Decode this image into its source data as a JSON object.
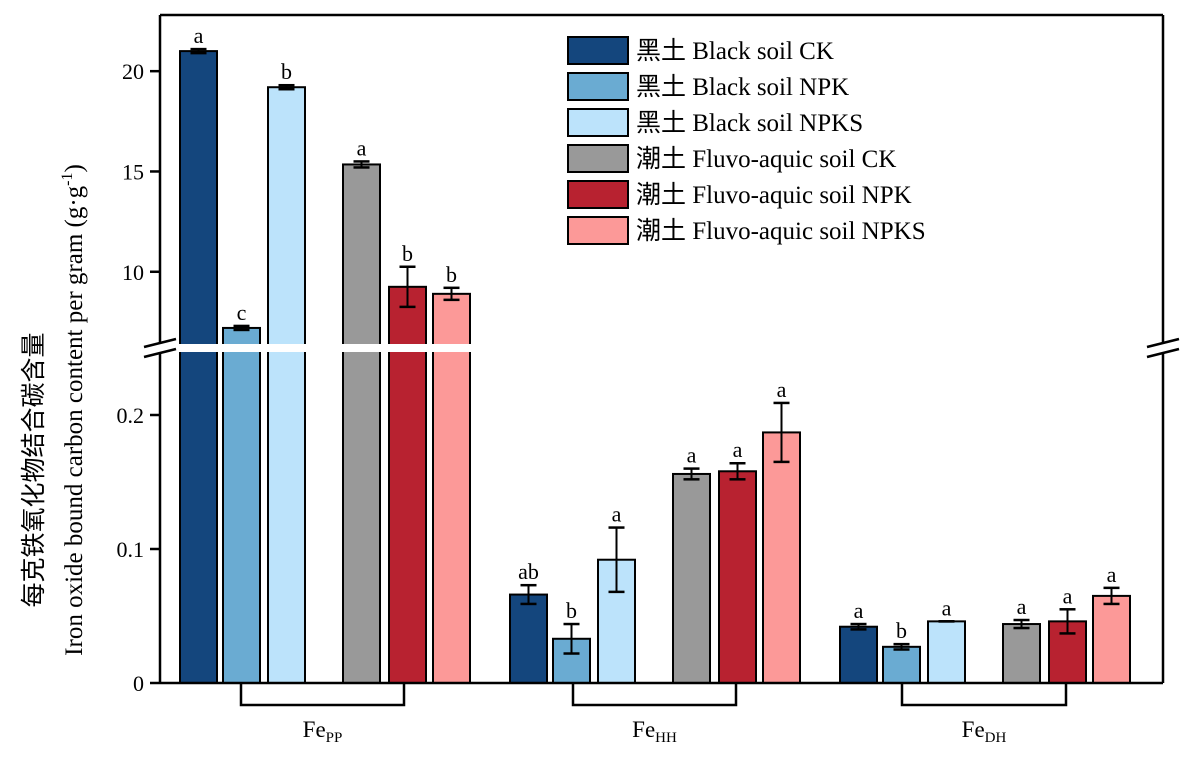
{
  "chart_data": {
    "type": "bar",
    "ylabel": "Iron oxide bound carbon content per gram (g·g-1)",
    "ylabel_cn": "每克铁氧化物结合碳含量",
    "ylabel_unit_base": "Iron oxide bound carbon content per gram (g·g",
    "ylabel_unit_sup": "-1",
    "ylabel_unit_end": ")",
    "axis_break": true,
    "upper_ylim": [
      6.2,
      22.8
    ],
    "upper_ticks": [
      "10",
      "15",
      "20"
    ],
    "lower_ylim": [
      0,
      0.25
    ],
    "lower_ticks": [
      "0",
      "0.1",
      "0.2"
    ],
    "groups": [
      {
        "main": "Fe",
        "sub": "PP"
      },
      {
        "main": "Fe",
        "sub": "HH"
      },
      {
        "main": "Fe",
        "sub": "DH"
      }
    ],
    "series": [
      {
        "name": "黑土 Black soil CK",
        "color": "#14467d",
        "values": [
          21.0,
          0.066,
          0.042
        ],
        "errors": [
          0.1,
          0.007,
          0.002
        ],
        "letters": [
          "a",
          "ab",
          "a"
        ]
      },
      {
        "name": "黑土 Black soil NPK",
        "color": "#6aabd2",
        "values": [
          7.2,
          0.033,
          0.027
        ],
        "errors": [
          0.1,
          0.011,
          0.002
        ],
        "letters": [
          "c",
          "b",
          "b"
        ]
      },
      {
        "name": "黑土 Black soil NPKS",
        "color": "#bce3fb",
        "values": [
          19.2,
          0.092,
          0.046
        ],
        "errors": [
          0.1,
          0.024,
          0.0
        ],
        "letters": [
          "b",
          "a",
          "a"
        ]
      },
      {
        "name": "潮土 Fluvo-aquic soil CK",
        "color": "#999999",
        "values": [
          15.35,
          0.156,
          0.044
        ],
        "errors": [
          0.15,
          0.004,
          0.003
        ],
        "letters": [
          "a",
          "a",
          "a"
        ]
      },
      {
        "name": "潮土 Fluvo-aquic soil NPK",
        "color": "#b82230",
        "values": [
          9.25,
          0.158,
          0.046
        ],
        "errors": [
          1.0,
          0.006,
          0.009
        ],
        "letters": [
          "b",
          "a",
          "a"
        ]
      },
      {
        "name": "潮土 Fluvo-aquic soil NPKS",
        "color": "#fc9998",
        "values": [
          8.9,
          0.187,
          0.065
        ],
        "errors": [
          0.3,
          0.022,
          0.006
        ],
        "letters": [
          "b",
          "a",
          "a"
        ]
      }
    ],
    "legend_position": "top-right"
  }
}
